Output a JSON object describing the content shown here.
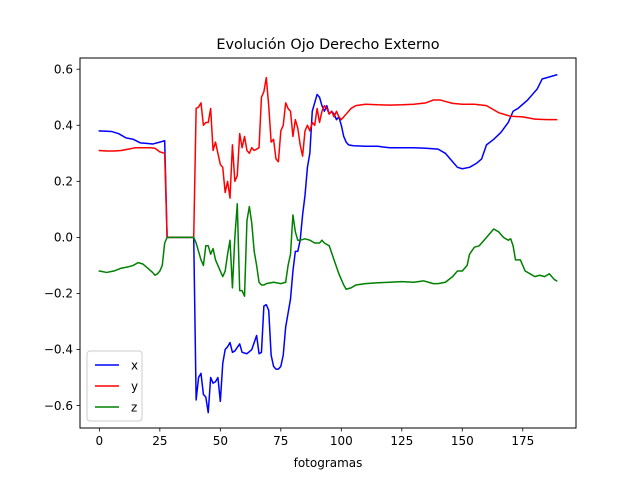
{
  "chart_data": {
    "type": "line",
    "title": "Evolución Ojo Derecho Externo",
    "xlabel": "fotogramas",
    "ylabel": "",
    "xlim": [
      -8,
      197
    ],
    "ylim": [
      -0.68,
      0.64
    ],
    "xticks": [
      0,
      25,
      50,
      75,
      100,
      125,
      150,
      175
    ],
    "yticks": [
      -0.6,
      -0.4,
      -0.2,
      0.0,
      0.2,
      0.4,
      0.6
    ],
    "ytick_labels": [
      "−0.6",
      "−0.4",
      "−0.2",
      "0.0",
      "0.2",
      "0.4",
      "0.6"
    ],
    "grid": false,
    "legend_position": "lower-left",
    "series": [
      {
        "name": "x",
        "color": "#0000ff",
        "points": [
          [
            0,
            0.38
          ],
          [
            5,
            0.378
          ],
          [
            8,
            0.37
          ],
          [
            11,
            0.355
          ],
          [
            14,
            0.35
          ],
          [
            17,
            0.337
          ],
          [
            20,
            0.335
          ],
          [
            22,
            0.333
          ],
          [
            25,
            0.34
          ],
          [
            27,
            0.345
          ],
          [
            28,
            0.0
          ],
          [
            30,
            0.0
          ],
          [
            35,
            0.0
          ],
          [
            39,
            0.0
          ],
          [
            40,
            -0.58
          ],
          [
            41,
            -0.5
          ],
          [
            42,
            -0.485
          ],
          [
            43,
            -0.56
          ],
          [
            44,
            -0.57
          ],
          [
            45,
            -0.625
          ],
          [
            46,
            -0.5
          ],
          [
            47,
            -0.52
          ],
          [
            48,
            -0.515
          ],
          [
            49,
            -0.5
          ],
          [
            50,
            -0.585
          ],
          [
            51,
            -0.45
          ],
          [
            52,
            -0.4
          ],
          [
            53,
            -0.39
          ],
          [
            54,
            -0.375
          ],
          [
            55,
            -0.41
          ],
          [
            56,
            -0.405
          ],
          [
            58,
            -0.38
          ],
          [
            59,
            -0.41
          ],
          [
            61,
            -0.415
          ],
          [
            63,
            -0.4
          ],
          [
            65,
            -0.35
          ],
          [
            66,
            -0.415
          ],
          [
            67,
            -0.41
          ],
          [
            68,
            -0.245
          ],
          [
            69,
            -0.24
          ],
          [
            70,
            -0.26
          ],
          [
            71,
            -0.42
          ],
          [
            72,
            -0.46
          ],
          [
            73,
            -0.47
          ],
          [
            74,
            -0.47
          ],
          [
            75,
            -0.46
          ],
          [
            76,
            -0.42
          ],
          [
            77,
            -0.32
          ],
          [
            78,
            -0.27
          ],
          [
            79,
            -0.22
          ],
          [
            80,
            -0.12
          ],
          [
            81,
            -0.05
          ],
          [
            82,
            -0.05
          ],
          [
            83,
            -0.01
          ],
          [
            84,
            0.08
          ],
          [
            85,
            0.15
          ],
          [
            86,
            0.25
          ],
          [
            87,
            0.3
          ],
          [
            88,
            0.45
          ],
          [
            89,
            0.48
          ],
          [
            90,
            0.51
          ],
          [
            91,
            0.5
          ],
          [
            92,
            0.47
          ],
          [
            93,
            0.45
          ],
          [
            94,
            0.47
          ],
          [
            95,
            0.44
          ],
          [
            96,
            0.45
          ],
          [
            97,
            0.44
          ],
          [
            98,
            0.42
          ],
          [
            99,
            0.43
          ],
          [
            100,
            0.4
          ],
          [
            101,
            0.36
          ],
          [
            102,
            0.34
          ],
          [
            103,
            0.33
          ],
          [
            105,
            0.327
          ],
          [
            110,
            0.325
          ],
          [
            115,
            0.325
          ],
          [
            120,
            0.32
          ],
          [
            125,
            0.32
          ],
          [
            130,
            0.32
          ],
          [
            135,
            0.318
          ],
          [
            140,
            0.315
          ],
          [
            143,
            0.3
          ],
          [
            146,
            0.27
          ],
          [
            148,
            0.25
          ],
          [
            150,
            0.245
          ],
          [
            153,
            0.25
          ],
          [
            156,
            0.265
          ],
          [
            158,
            0.28
          ],
          [
            160,
            0.33
          ],
          [
            163,
            0.35
          ],
          [
            166,
            0.375
          ],
          [
            169,
            0.41
          ],
          [
            171,
            0.45
          ],
          [
            173,
            0.46
          ],
          [
            175,
            0.475
          ],
          [
            177,
            0.49
          ],
          [
            179,
            0.51
          ],
          [
            181,
            0.53
          ],
          [
            183,
            0.565
          ],
          [
            185,
            0.57
          ],
          [
            187,
            0.575
          ],
          [
            189,
            0.58
          ]
        ]
      },
      {
        "name": "y",
        "color": "#ff0000",
        "points": [
          [
            0,
            0.31
          ],
          [
            3,
            0.308
          ],
          [
            6,
            0.308
          ],
          [
            9,
            0.31
          ],
          [
            12,
            0.315
          ],
          [
            15,
            0.32
          ],
          [
            18,
            0.32
          ],
          [
            21,
            0.32
          ],
          [
            23,
            0.318
          ],
          [
            25,
            0.305
          ],
          [
            27,
            0.3
          ],
          [
            28,
            0.0
          ],
          [
            30,
            0.0
          ],
          [
            35,
            0.0
          ],
          [
            39,
            0.0
          ],
          [
            40,
            0.46
          ],
          [
            41,
            0.465
          ],
          [
            42,
            0.48
          ],
          [
            43,
            0.4
          ],
          [
            44,
            0.41
          ],
          [
            45,
            0.41
          ],
          [
            46,
            0.46
          ],
          [
            47,
            0.31
          ],
          [
            48,
            0.34
          ],
          [
            49,
            0.3
          ],
          [
            50,
            0.26
          ],
          [
            51,
            0.25
          ],
          [
            52,
            0.16
          ],
          [
            53,
            0.2
          ],
          [
            54,
            0.14
          ],
          [
            55,
            0.33
          ],
          [
            56,
            0.2
          ],
          [
            57,
            0.22
          ],
          [
            58,
            0.37
          ],
          [
            59,
            0.32
          ],
          [
            60,
            0.36
          ],
          [
            61,
            0.31
          ],
          [
            62,
            0.3
          ],
          [
            63,
            0.32
          ],
          [
            64,
            0.31
          ],
          [
            66,
            0.32
          ],
          [
            67,
            0.5
          ],
          [
            68,
            0.52
          ],
          [
            69,
            0.57
          ],
          [
            70,
            0.47
          ],
          [
            71,
            0.34
          ],
          [
            72,
            0.35
          ],
          [
            73,
            0.28
          ],
          [
            74,
            0.27
          ],
          [
            75,
            0.38
          ],
          [
            76,
            0.4
          ],
          [
            77,
            0.48
          ],
          [
            78,
            0.46
          ],
          [
            79,
            0.45
          ],
          [
            80,
            0.36
          ],
          [
            81,
            0.42
          ],
          [
            82,
            0.39
          ],
          [
            83,
            0.33
          ],
          [
            84,
            0.29
          ],
          [
            85,
            0.38
          ],
          [
            86,
            0.4
          ],
          [
            87,
            0.38
          ],
          [
            88,
            0.41
          ],
          [
            89,
            0.4
          ],
          [
            90,
            0.46
          ],
          [
            91,
            0.41
          ],
          [
            92,
            0.45
          ],
          [
            93,
            0.47
          ],
          [
            94,
            0.46
          ],
          [
            95,
            0.44
          ],
          [
            96,
            0.45
          ],
          [
            97,
            0.43
          ],
          [
            98,
            0.45
          ],
          [
            99,
            0.43
          ],
          [
            100,
            0.42
          ],
          [
            102,
            0.44
          ],
          [
            104,
            0.46
          ],
          [
            106,
            0.47
          ],
          [
            110,
            0.475
          ],
          [
            115,
            0.473
          ],
          [
            120,
            0.472
          ],
          [
            125,
            0.473
          ],
          [
            130,
            0.475
          ],
          [
            135,
            0.48
          ],
          [
            138,
            0.49
          ],
          [
            141,
            0.49
          ],
          [
            143,
            0.485
          ],
          [
            146,
            0.478
          ],
          [
            150,
            0.475
          ],
          [
            155,
            0.475
          ],
          [
            160,
            0.47
          ],
          [
            165,
            0.445
          ],
          [
            170,
            0.432
          ],
          [
            175,
            0.43
          ],
          [
            180,
            0.422
          ],
          [
            185,
            0.42
          ],
          [
            189,
            0.42
          ]
        ]
      },
      {
        "name": "z",
        "color": "#008000",
        "points": [
          [
            0,
            -0.12
          ],
          [
            3,
            -0.125
          ],
          [
            6,
            -0.12
          ],
          [
            9,
            -0.11
          ],
          [
            12,
            -0.105
          ],
          [
            14,
            -0.1
          ],
          [
            16,
            -0.09
          ],
          [
            18,
            -0.095
          ],
          [
            20,
            -0.11
          ],
          [
            22,
            -0.125
          ],
          [
            23,
            -0.135
          ],
          [
            24,
            -0.13
          ],
          [
            25,
            -0.12
          ],
          [
            26,
            -0.1
          ],
          [
            27,
            -0.02
          ],
          [
            28,
            0.0
          ],
          [
            30,
            0.0
          ],
          [
            35,
            0.0
          ],
          [
            39,
            0.0
          ],
          [
            40,
            -0.02
          ],
          [
            41,
            -0.05
          ],
          [
            42,
            -0.08
          ],
          [
            43,
            -0.1
          ],
          [
            44,
            -0.03
          ],
          [
            45,
            -0.03
          ],
          [
            46,
            -0.06
          ],
          [
            47,
            -0.04
          ],
          [
            48,
            -0.08
          ],
          [
            49,
            -0.1
          ],
          [
            50,
            -0.12
          ],
          [
            51,
            -0.14
          ],
          [
            52,
            -0.12
          ],
          [
            53,
            -0.06
          ],
          [
            54,
            -0.01
          ],
          [
            55,
            -0.18
          ],
          [
            56,
            0.0
          ],
          [
            57,
            0.12
          ],
          [
            58,
            -0.19
          ],
          [
            59,
            -0.19
          ],
          [
            60,
            -0.21
          ],
          [
            61,
            0.06
          ],
          [
            62,
            0.11
          ],
          [
            63,
            0.05
          ],
          [
            64,
            -0.05
          ],
          [
            65,
            -0.1
          ],
          [
            66,
            -0.16
          ],
          [
            67,
            -0.17
          ],
          [
            68,
            -0.17
          ],
          [
            69,
            -0.165
          ],
          [
            72,
            -0.16
          ],
          [
            75,
            -0.165
          ],
          [
            77,
            -0.16
          ],
          [
            78,
            -0.1
          ],
          [
            79,
            -0.06
          ],
          [
            80,
            0.08
          ],
          [
            81,
            0.02
          ],
          [
            82,
            -0.01
          ],
          [
            83,
            -0.01
          ],
          [
            85,
            -0.005
          ],
          [
            87,
            -0.01
          ],
          [
            89,
            -0.02
          ],
          [
            91,
            -0.02
          ],
          [
            92,
            -0.01
          ],
          [
            93,
            -0.02
          ],
          [
            95,
            -0.03
          ],
          [
            97,
            -0.08
          ],
          [
            99,
            -0.13
          ],
          [
            101,
            -0.17
          ],
          [
            102,
            -0.185
          ],
          [
            104,
            -0.18
          ],
          [
            106,
            -0.17
          ],
          [
            110,
            -0.165
          ],
          [
            115,
            -0.162
          ],
          [
            120,
            -0.16
          ],
          [
            125,
            -0.158
          ],
          [
            130,
            -0.16
          ],
          [
            134,
            -0.155
          ],
          [
            136,
            -0.16
          ],
          [
            138,
            -0.165
          ],
          [
            140,
            -0.165
          ],
          [
            143,
            -0.16
          ],
          [
            146,
            -0.14
          ],
          [
            148,
            -0.12
          ],
          [
            150,
            -0.12
          ],
          [
            152,
            -0.1
          ],
          [
            153,
            -0.06
          ],
          [
            155,
            -0.035
          ],
          [
            157,
            -0.03
          ],
          [
            159,
            -0.01
          ],
          [
            161,
            0.01
          ],
          [
            163,
            0.03
          ],
          [
            165,
            0.02
          ],
          [
            167,
            0.0
          ],
          [
            169,
            -0.01
          ],
          [
            170,
            -0.005
          ],
          [
            171,
            -0.03
          ],
          [
            172,
            -0.08
          ],
          [
            174,
            -0.08
          ],
          [
            176,
            -0.12
          ],
          [
            178,
            -0.13
          ],
          [
            180,
            -0.14
          ],
          [
            182,
            -0.135
          ],
          [
            184,
            -0.14
          ],
          [
            186,
            -0.13
          ],
          [
            188,
            -0.15
          ],
          [
            189,
            -0.155
          ]
        ]
      }
    ]
  }
}
